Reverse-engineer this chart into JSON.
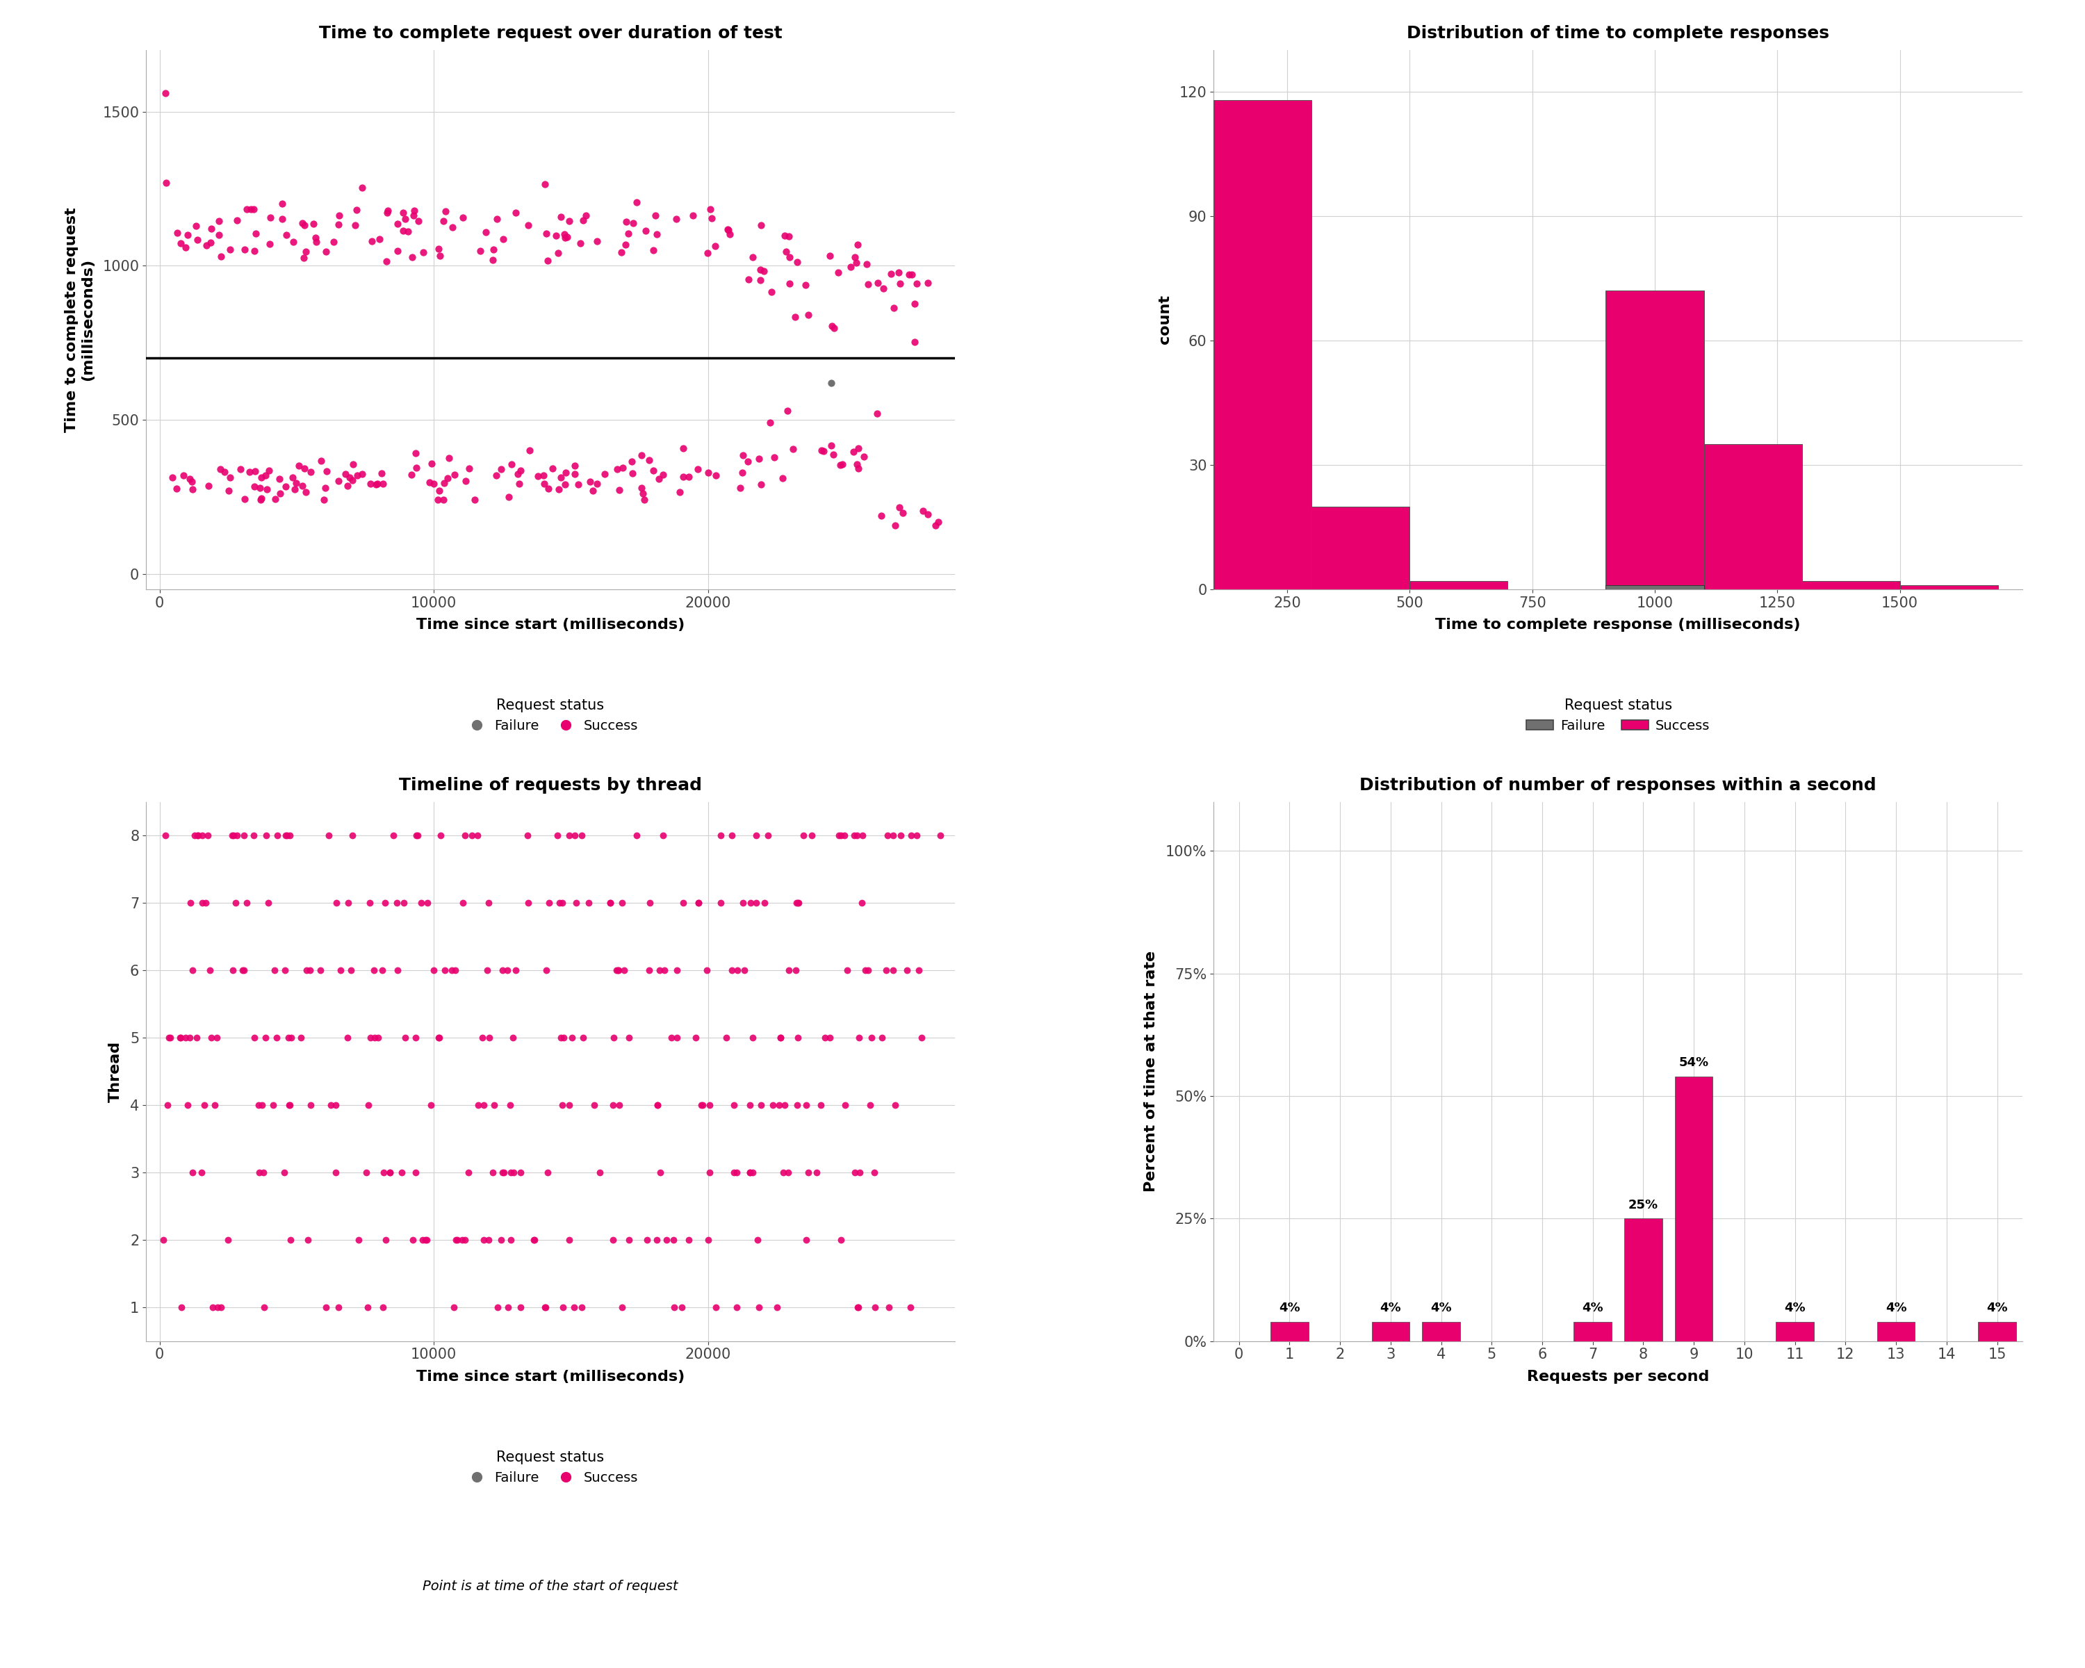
{
  "fig_width": 30,
  "fig_height": 24,
  "bg_color": "#ffffff",
  "pink_color": "#E8006F",
  "gray_color": "#707070",
  "scatter1": {
    "title": "Time to complete request over duration of test",
    "xlabel": "Time since start (milliseconds)",
    "ylabel": "Time to complete request\n(milliseconds)",
    "hline_y": 700,
    "yticks": [
      0,
      500,
      1000,
      1500
    ],
    "xticks": [
      0,
      10000,
      20000
    ],
    "xlim": [
      -500,
      29000
    ],
    "ylim": [
      -50,
      1700
    ]
  },
  "hist1": {
    "title": "Distribution of time to complete responses",
    "xlabel": "Time to complete response (milliseconds)",
    "ylabel": "count",
    "success_edges": [
      100,
      300,
      500,
      700,
      900,
      1100,
      1300,
      1500,
      1700
    ],
    "success_counts": [
      118,
      20,
      2,
      0,
      72,
      35,
      2,
      1
    ],
    "failure_counts": [
      0,
      0,
      0,
      0,
      1,
      0,
      0,
      0
    ],
    "yticks": [
      0,
      30,
      60,
      90,
      120
    ],
    "xticks": [
      250,
      500,
      750,
      1000,
      1250,
      1500
    ],
    "xlim": [
      100,
      1750
    ],
    "ylim": [
      0,
      130
    ]
  },
  "scatter2": {
    "title": "Timeline of requests by thread",
    "xlabel": "Time since start (milliseconds)",
    "ylabel": "Thread",
    "threads": [
      1,
      2,
      3,
      4,
      5,
      6,
      7,
      8
    ],
    "xticks": [
      0,
      10000,
      20000
    ],
    "yticks": [
      1,
      2,
      3,
      4,
      5,
      6,
      7,
      8
    ],
    "xlim": [
      -500,
      29000
    ],
    "ylim": [
      0.5,
      8.5
    ]
  },
  "bar2": {
    "title": "Distribution of number of responses within a second",
    "xlabel": "Requests per second",
    "ylabel": "Percent of time at that rate",
    "categories": [
      0,
      1,
      2,
      3,
      4,
      5,
      6,
      7,
      8,
      9,
      10,
      11,
      12,
      13,
      14,
      15
    ],
    "values": [
      0,
      4,
      0,
      4,
      4,
      0,
      0,
      4,
      25,
      54,
      0,
      4,
      0,
      4,
      0,
      4
    ],
    "labels": [
      "",
      "4%",
      "",
      "4%",
      "4%",
      "",
      "",
      "4%",
      "25%",
      "54%",
      "",
      "4%",
      "",
      "4%",
      "",
      "4%"
    ],
    "ytick_labels": [
      "0%",
      "25%",
      "50%",
      "75%",
      "100%"
    ],
    "ytick_vals": [
      0,
      25,
      50,
      75,
      100
    ],
    "xlim": [
      -0.5,
      15.5
    ],
    "ylim": [
      0,
      110
    ]
  },
  "bottom_note": "Point is at time of the start of request"
}
